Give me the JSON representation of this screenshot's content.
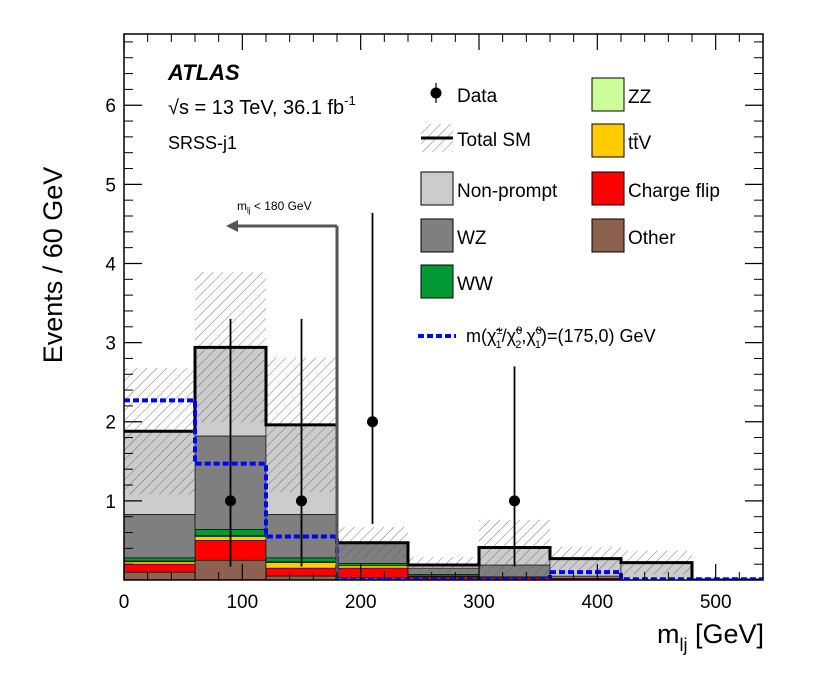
{
  "chart_data": {
    "type": "bar",
    "stacked": true,
    "experiment": "ATLAS",
    "energy_text": "√s = 13 TeV, 36.1 fb",
    "lumi_superscript": "-1",
    "region": "SRSS-j1",
    "xlabel_main": "m",
    "xlabel_sub": "lj",
    "xlabel_unit": " [GeV]",
    "ylabel": "Events / 60 GeV",
    "xlim": [
      0,
      540
    ],
    "ylim": [
      0,
      6.9
    ],
    "x_ticks": [
      0,
      100,
      200,
      300,
      400,
      500
    ],
    "y_ticks": [
      1,
      2,
      3,
      4,
      5,
      6
    ],
    "bin_edges": [
      0,
      60,
      120,
      180,
      240,
      300,
      360,
      420,
      480,
      540
    ],
    "series": [
      {
        "name": "Other",
        "color": "#8c6150",
        "values": [
          0.1,
          0.25,
          0.05,
          0.03,
          0.01,
          0.01,
          0.0,
          0.0,
          0.0
        ]
      },
      {
        "name": "Charge flip",
        "color": "#ff0000",
        "values": [
          0.1,
          0.25,
          0.1,
          0.12,
          0.03,
          0.02,
          0.02,
          0.0,
          0.0
        ]
      },
      {
        "name": "ttV",
        "color": "#ffcc00",
        "values": [
          0.03,
          0.05,
          0.07,
          0.03,
          0.01,
          0.01,
          0.0,
          0.0,
          0.0
        ]
      },
      {
        "name": "ZZ",
        "color": "#ccff99",
        "values": [
          0.01,
          0.01,
          0.01,
          0.0,
          0.0,
          0.0,
          0.0,
          0.0,
          0.0
        ]
      },
      {
        "name": "WW",
        "color": "#009933",
        "values": [
          0.04,
          0.08,
          0.05,
          0.03,
          0.02,
          0.0,
          0.0,
          0.0,
          0.0
        ]
      },
      {
        "name": "WZ",
        "color": "#7f7f7f",
        "values": [
          0.55,
          1.18,
          0.55,
          0.26,
          0.08,
          0.15,
          0.03,
          0.0,
          0.0
        ]
      },
      {
        "name": "Non-prompt",
        "color": "#cccccc",
        "values": [
          1.05,
          1.12,
          1.13,
          0.0,
          0.04,
          0.22,
          0.22,
          0.22,
          0.0
        ]
      }
    ],
    "total_sm": [
      1.88,
      2.94,
      1.96,
      0.47,
      0.19,
      0.41,
      0.27,
      0.22,
      0.0
    ],
    "total_sm_unc": [
      0.8,
      0.95,
      0.85,
      0.2,
      0.1,
      0.35,
      0.15,
      0.15,
      0.0
    ],
    "signal": {
      "name_prefix": "m(",
      "name_body": "χ̃",
      "name_text": "m(χ̃±1/χ̃02,χ̃01)=(175,0) GeV",
      "color": "#0000ff",
      "values": [
        2.27,
        1.47,
        0.55,
        0.01,
        0.01,
        0.01,
        0.1,
        0.01,
        0.01
      ]
    },
    "data_points": [
      {
        "x": 90,
        "y": 1,
        "err_low": 0.83,
        "err_high": 2.3
      },
      {
        "x": 150,
        "y": 1,
        "err_low": 0.83,
        "err_high": 2.3
      },
      {
        "x": 210,
        "y": 2,
        "err_low": 1.29,
        "err_high": 2.64
      },
      {
        "x": 330,
        "y": 1,
        "err_low": 0.83,
        "err_high": 1.7
      }
    ],
    "cut_arrow": {
      "x": 180,
      "label_main": "m",
      "label_sub": "lj",
      "label_rest": " < 180 GeV"
    },
    "legend": {
      "data": "Data",
      "total_sm": "Total SM",
      "non_prompt": "Non-prompt",
      "wz": "WZ",
      "ww": "WW",
      "zz": "ZZ",
      "ttv": "tt̄V",
      "charge_flip": "Charge flip",
      "other": "Other"
    }
  }
}
